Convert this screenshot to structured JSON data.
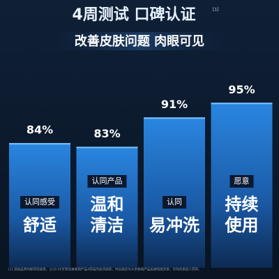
{
  "chart_data": {
    "type": "bar",
    "title": "4周测试 口碑认证",
    "title_note": "[1]",
    "subtitle": "改善皮肤问题 肉眼可见",
    "tags": [
      "认同感受",
      "认同产品",
      "认同",
      "愿意"
    ],
    "categories": [
      [
        "舒适"
      ],
      [
        "温和",
        "清洁"
      ],
      [
        "易冲洗"
      ],
      [
        "持续",
        "使用"
      ]
    ],
    "values": [
      84,
      83,
      91,
      95
    ],
    "value_labels": [
      "84%",
      "83%",
      "91%",
      "95%"
    ],
    "color": "#1f6fc4",
    "ylim": [
      50,
      100
    ],
    "footnote": "[1] 源自品牌内部研究结果，以18-50岁受试者使用产品4周后的自评结果，符合描述与大多使用产品后被轻度改善，实际效果因人而异。"
  }
}
